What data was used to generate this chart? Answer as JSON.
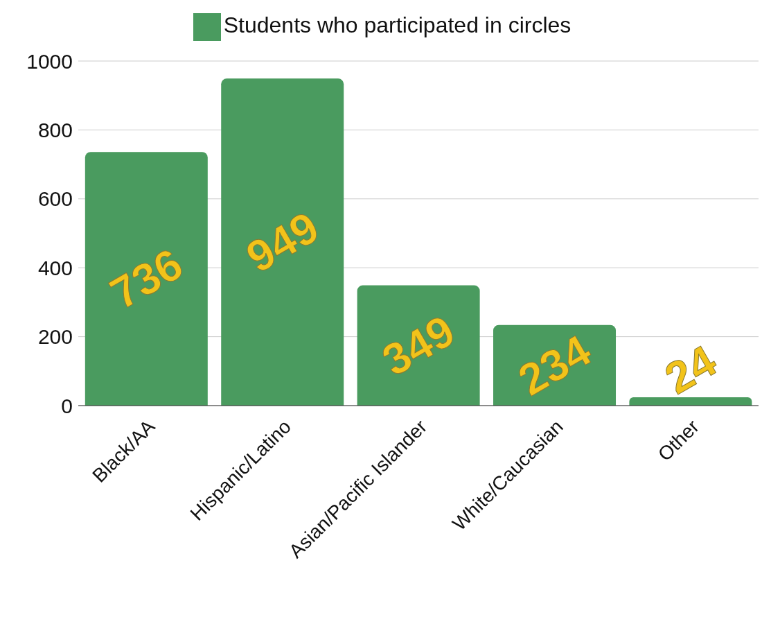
{
  "chart_data": {
    "type": "bar",
    "categories": [
      "Black/AA",
      "Hispanic/Latino",
      "Asian/Pacific Islander",
      "White/Caucasian",
      "Other"
    ],
    "series": [
      {
        "name": "Students who participated in circles",
        "color": "#4a9b5f",
        "values": [
          736,
          949,
          349,
          234,
          24
        ]
      }
    ],
    "ylim": [
      0,
      1000
    ],
    "yticks": [
      0,
      200,
      400,
      600,
      800,
      1000
    ],
    "grid": "y",
    "legend": "top",
    "data_labels": true
  }
}
